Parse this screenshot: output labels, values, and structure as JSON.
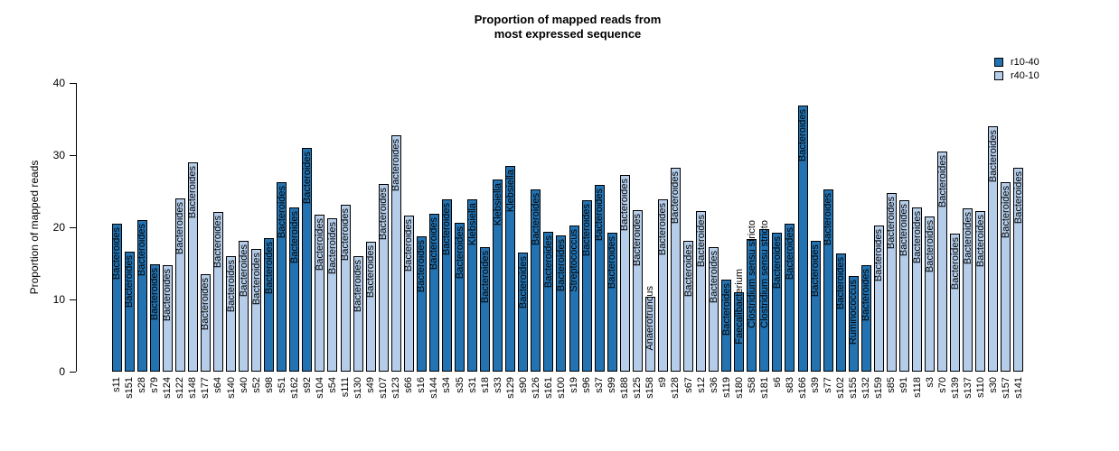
{
  "title": {
    "line1": "Proportion of mapped reads from",
    "line2": "most expressed sequence"
  },
  "chart_data": {
    "type": "bar",
    "title": "Proportion of mapped reads from most expressed sequence",
    "xlabel": "",
    "ylabel": "Proportion of mapped reads",
    "ylim": [
      0,
      40
    ],
    "yticks": [
      0,
      10,
      20,
      30,
      40
    ],
    "grid": false,
    "bar_outline_color": "#000000",
    "legend": {
      "position": "top-right",
      "entries": [
        {
          "label": "r10-40",
          "color": "#2373b2"
        },
        {
          "label": "r40-10",
          "color": "#b5cde9"
        }
      ]
    },
    "samples": [
      {
        "id": "s11",
        "value": 20.5,
        "taxon": "Bacteroides",
        "group": "r10-40"
      },
      {
        "id": "s151",
        "value": 16.6,
        "taxon": "Bacteroides",
        "group": "r10-40"
      },
      {
        "id": "s28",
        "value": 21.0,
        "taxon": "Bacteroides",
        "group": "r10-40"
      },
      {
        "id": "s79",
        "value": 14.9,
        "taxon": "Bacteroides",
        "group": "r10-40"
      },
      {
        "id": "s124",
        "value": 14.7,
        "taxon": "Bacteroides",
        "group": "r40-10"
      },
      {
        "id": "s122",
        "value": 24.0,
        "taxon": "Bacteroides",
        "group": "r40-10"
      },
      {
        "id": "s148",
        "value": 29.0,
        "taxon": "Bacteroides",
        "group": "r40-10"
      },
      {
        "id": "s177",
        "value": 13.5,
        "taxon": "Bacteroides",
        "group": "r40-10"
      },
      {
        "id": "s64",
        "value": 22.1,
        "taxon": "Bacteroides",
        "group": "r40-10"
      },
      {
        "id": "s140",
        "value": 16.0,
        "taxon": "Bacteroides",
        "group": "r40-10"
      },
      {
        "id": "s40",
        "value": 18.1,
        "taxon": "Bacteroides",
        "group": "r40-10"
      },
      {
        "id": "s52",
        "value": 17.0,
        "taxon": "Bacteroides",
        "group": "r40-10"
      },
      {
        "id": "s98",
        "value": 18.5,
        "taxon": "Bacteroides",
        "group": "r10-40"
      },
      {
        "id": "s51",
        "value": 26.3,
        "taxon": "Bacteroides",
        "group": "r10-40"
      },
      {
        "id": "s162",
        "value": 22.8,
        "taxon": "Bacteroides",
        "group": "r10-40"
      },
      {
        "id": "s92",
        "value": 31.0,
        "taxon": "Bacteroides",
        "group": "r10-40"
      },
      {
        "id": "s104",
        "value": 21.7,
        "taxon": "Bacteroides",
        "group": "r40-10"
      },
      {
        "id": "s54",
        "value": 21.3,
        "taxon": "Bacteroides",
        "group": "r40-10"
      },
      {
        "id": "s111",
        "value": 23.1,
        "taxon": "Bacteroides",
        "group": "r40-10"
      },
      {
        "id": "s130",
        "value": 16.0,
        "taxon": "Bacteroides",
        "group": "r40-10"
      },
      {
        "id": "s49",
        "value": 18.0,
        "taxon": "Bacteroides",
        "group": "r40-10"
      },
      {
        "id": "s107",
        "value": 26.0,
        "taxon": "Bacteroides",
        "group": "r40-10"
      },
      {
        "id": "s123",
        "value": 32.8,
        "taxon": "Bacteroides",
        "group": "r40-10"
      },
      {
        "id": "s66",
        "value": 21.6,
        "taxon": "Bacteroides",
        "group": "r40-10"
      },
      {
        "id": "s16",
        "value": 18.7,
        "taxon": "Bacteroides",
        "group": "r10-40"
      },
      {
        "id": "s144",
        "value": 21.9,
        "taxon": "Bacteroides",
        "group": "r10-40"
      },
      {
        "id": "s34",
        "value": 23.9,
        "taxon": "Bacteroides",
        "group": "r10-40"
      },
      {
        "id": "s35",
        "value": 20.6,
        "taxon": "Bacteroides",
        "group": "r10-40"
      },
      {
        "id": "s31",
        "value": 23.9,
        "taxon": "Klebsiella",
        "group": "r10-40"
      },
      {
        "id": "s18",
        "value": 17.2,
        "taxon": "Bacteroides",
        "group": "r10-40"
      },
      {
        "id": "s33",
        "value": 26.6,
        "taxon": "Klebsiella",
        "group": "r10-40"
      },
      {
        "id": "s129",
        "value": 28.5,
        "taxon": "Klebsiella",
        "group": "r10-40"
      },
      {
        "id": "s90",
        "value": 16.5,
        "taxon": "Bacteroides",
        "group": "r10-40"
      },
      {
        "id": "s126",
        "value": 25.3,
        "taxon": "Bacteroides",
        "group": "r10-40"
      },
      {
        "id": "s161",
        "value": 19.4,
        "taxon": "Bacteroides",
        "group": "r10-40"
      },
      {
        "id": "s100",
        "value": 18.9,
        "taxon": "Bacteroides",
        "group": "r10-40"
      },
      {
        "id": "s19",
        "value": 20.3,
        "taxon": "Streptococcus",
        "group": "r10-40"
      },
      {
        "id": "s96",
        "value": 23.7,
        "taxon": "Bacteroides",
        "group": "r10-40"
      },
      {
        "id": "s37",
        "value": 25.9,
        "taxon": "Bacteroides",
        "group": "r10-40"
      },
      {
        "id": "s99",
        "value": 19.2,
        "taxon": "Bacteroides",
        "group": "r10-40"
      },
      {
        "id": "s188",
        "value": 27.3,
        "taxon": "Bacteroides",
        "group": "r40-10"
      },
      {
        "id": "s125",
        "value": 22.4,
        "taxon": "Bacteroides",
        "group": "r40-10"
      },
      {
        "id": "s158",
        "value": 10.4,
        "taxon": "Anaerotruncus",
        "group": "r40-10"
      },
      {
        "id": "s9",
        "value": 23.9,
        "taxon": "Bacteroides",
        "group": "r40-10"
      },
      {
        "id": "s128",
        "value": 28.2,
        "taxon": "Bacteroides",
        "group": "r40-10"
      },
      {
        "id": "s67",
        "value": 18.1,
        "taxon": "Bacteroides",
        "group": "r40-10"
      },
      {
        "id": "s12",
        "value": 22.2,
        "taxon": "Bacteroides",
        "group": "r40-10"
      },
      {
        "id": "s36",
        "value": 17.3,
        "taxon": "Bacteroides",
        "group": "r40-10"
      },
      {
        "id": "s119",
        "value": 12.8,
        "taxon": "Bacteroides",
        "group": "r10-40"
      },
      {
        "id": "s180",
        "value": 11.0,
        "taxon": "Faecalibacterium",
        "group": "r10-40"
      },
      {
        "id": "s58",
        "value": 18.4,
        "taxon": "Clostridium sensu stricto",
        "group": "r10-40"
      },
      {
        "id": "s181",
        "value": 19.7,
        "taxon": "Clostridium sensu stricto",
        "group": "r10-40"
      },
      {
        "id": "s6",
        "value": 19.2,
        "taxon": "Bacteroides",
        "group": "r10-40"
      },
      {
        "id": "s83",
        "value": 20.5,
        "taxon": "Bacteroides",
        "group": "r10-40"
      },
      {
        "id": "s166",
        "value": 36.9,
        "taxon": "Bacteroides",
        "group": "r10-40"
      },
      {
        "id": "s39",
        "value": 18.1,
        "taxon": "Bacteroides",
        "group": "r10-40"
      },
      {
        "id": "s77",
        "value": 25.2,
        "taxon": "Bacteroides",
        "group": "r10-40"
      },
      {
        "id": "s102",
        "value": 16.4,
        "taxon": "Bacteroides",
        "group": "r10-40"
      },
      {
        "id": "s155",
        "value": 13.2,
        "taxon": "Ruminococcus",
        "group": "r10-40"
      },
      {
        "id": "s132",
        "value": 14.8,
        "taxon": "Bacteroides",
        "group": "r10-40"
      },
      {
        "id": "s159",
        "value": 20.2,
        "taxon": "Bacteroides",
        "group": "r40-10"
      },
      {
        "id": "s85",
        "value": 24.7,
        "taxon": "Bacteroides",
        "group": "r40-10"
      },
      {
        "id": "s91",
        "value": 23.8,
        "taxon": "Bacteroides",
        "group": "r40-10"
      },
      {
        "id": "s118",
        "value": 22.8,
        "taxon": "Bacteroides",
        "group": "r40-10"
      },
      {
        "id": "s3",
        "value": 21.5,
        "taxon": "Bacteroides",
        "group": "r40-10"
      },
      {
        "id": "s70",
        "value": 30.5,
        "taxon": "Bacteroides",
        "group": "r40-10"
      },
      {
        "id": "s139",
        "value": 19.1,
        "taxon": "Bacteroides",
        "group": "r40-10"
      },
      {
        "id": "s137",
        "value": 22.6,
        "taxon": "Bacteroides",
        "group": "r40-10"
      },
      {
        "id": "s110",
        "value": 22.2,
        "taxon": "Bacteroides",
        "group": "r40-10"
      },
      {
        "id": "s30",
        "value": 34.0,
        "taxon": "Bacteroides",
        "group": "r40-10"
      },
      {
        "id": "s157",
        "value": 26.3,
        "taxon": "Bacteroides",
        "group": "r40-10"
      },
      {
        "id": "s141",
        "value": 28.3,
        "taxon": "Bacteroides",
        "group": "r40-10"
      }
    ]
  }
}
